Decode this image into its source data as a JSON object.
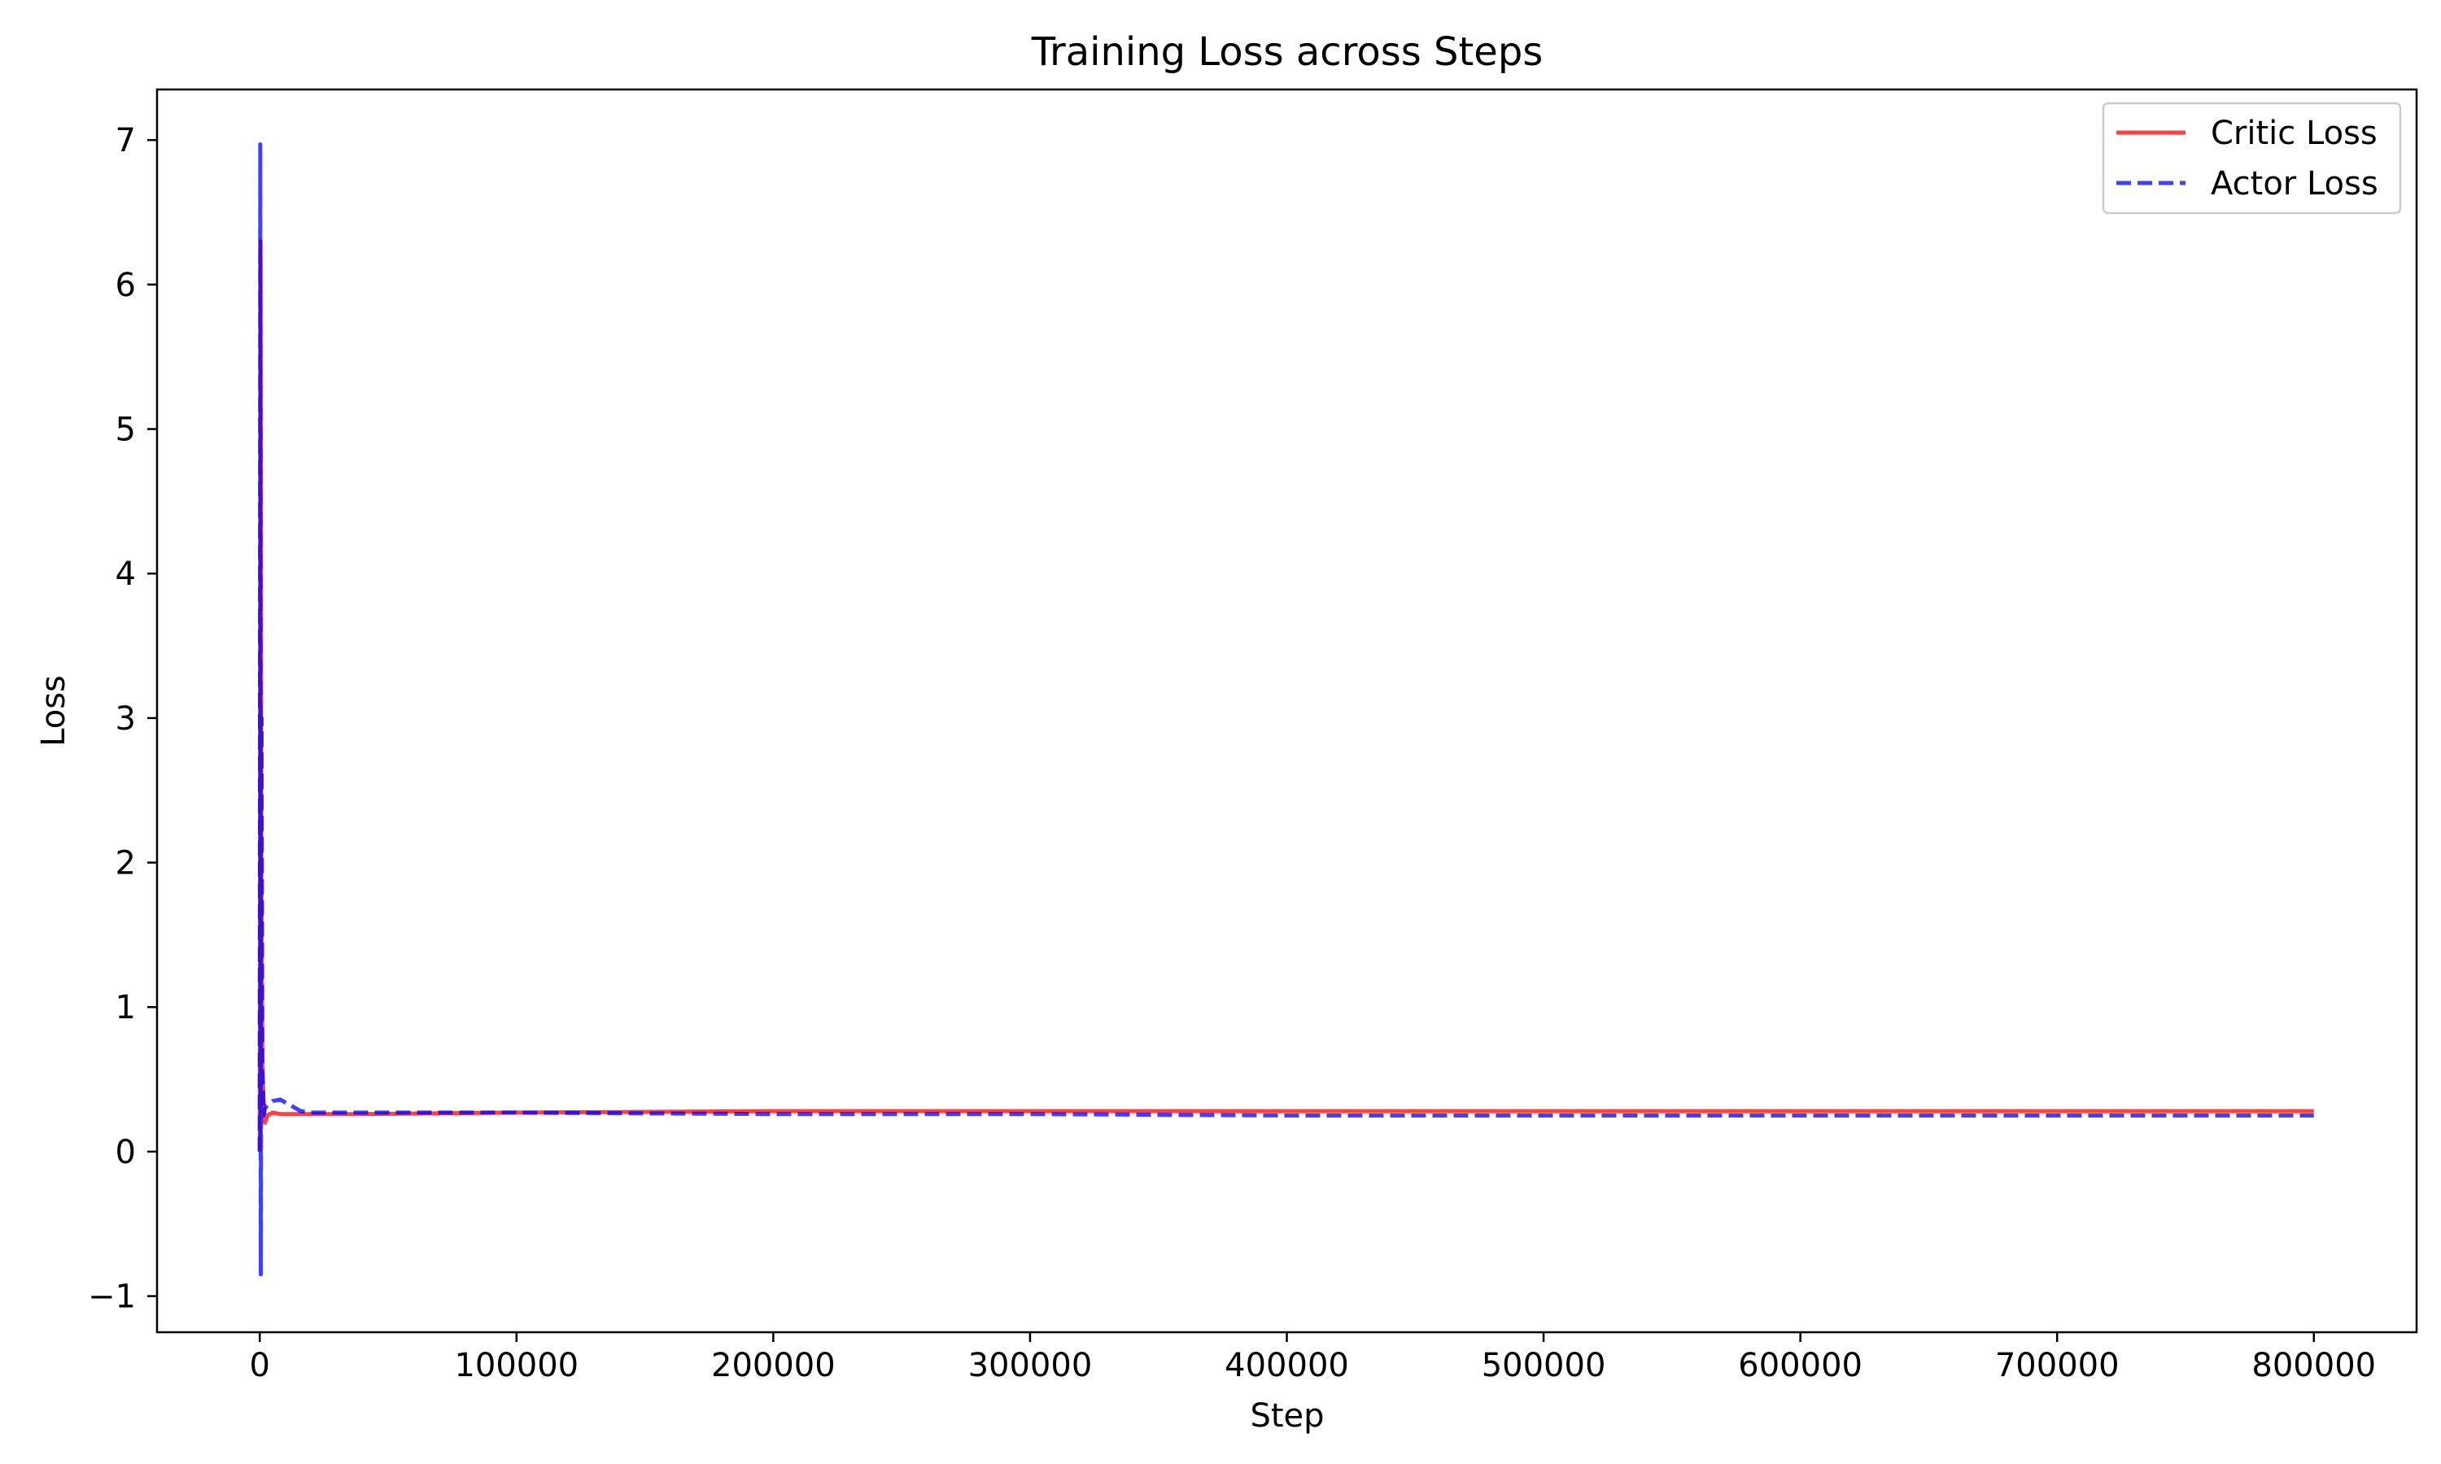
{
  "chart_data": {
    "type": "line",
    "title": "Training Loss across Steps",
    "xlabel": "Step",
    "ylabel": "Loss",
    "xlim": [
      -40000,
      840000
    ],
    "ylim": [
      -1.25,
      7.35
    ],
    "x_ticks": [
      0,
      100000,
      200000,
      300000,
      400000,
      500000,
      600000,
      700000,
      800000
    ],
    "x_tick_labels": [
      "0",
      "100000",
      "200000",
      "300000",
      "400000",
      "500000",
      "600000",
      "700000",
      "800000"
    ],
    "y_ticks": [
      -1,
      0,
      1,
      2,
      3,
      4,
      5,
      6,
      7
    ],
    "y_tick_labels": [
      "−1",
      "0",
      "1",
      "2",
      "3",
      "4",
      "5",
      "6",
      "7"
    ],
    "grid": false,
    "legend_position": "top-right",
    "series": [
      {
        "name": "Critic Loss",
        "color": "#ff0000",
        "line_style": "solid",
        "x": [
          0,
          300,
          600,
          1000,
          1500,
          2000,
          3000,
          5000,
          8000,
          12000,
          20000,
          40000,
          100000,
          200000,
          300000,
          400000,
          500000,
          600000,
          700000,
          800000
        ],
        "y": [
          0.0,
          6.3,
          2.0,
          0.6,
          0.35,
          0.2,
          0.25,
          0.27,
          0.26,
          0.26,
          0.26,
          0.26,
          0.27,
          0.28,
          0.28,
          0.28,
          0.28,
          0.28,
          0.28,
          0.28
        ]
      },
      {
        "name": "Actor Loss",
        "color": "#0000ff",
        "line_style": "dashed",
        "x": [
          0,
          200,
          400,
          700,
          1000,
          1500,
          2000,
          3000,
          5000,
          8000,
          12000,
          16000,
          20000,
          40000,
          100000,
          200000,
          300000,
          400000,
          500000,
          600000,
          700000,
          800000
        ],
        "y": [
          0.0,
          6.97,
          -0.85,
          3.0,
          0.6,
          0.25,
          0.3,
          0.32,
          0.35,
          0.36,
          0.32,
          0.28,
          0.27,
          0.27,
          0.27,
          0.26,
          0.26,
          0.25,
          0.25,
          0.25,
          0.25,
          0.25
        ]
      }
    ]
  }
}
